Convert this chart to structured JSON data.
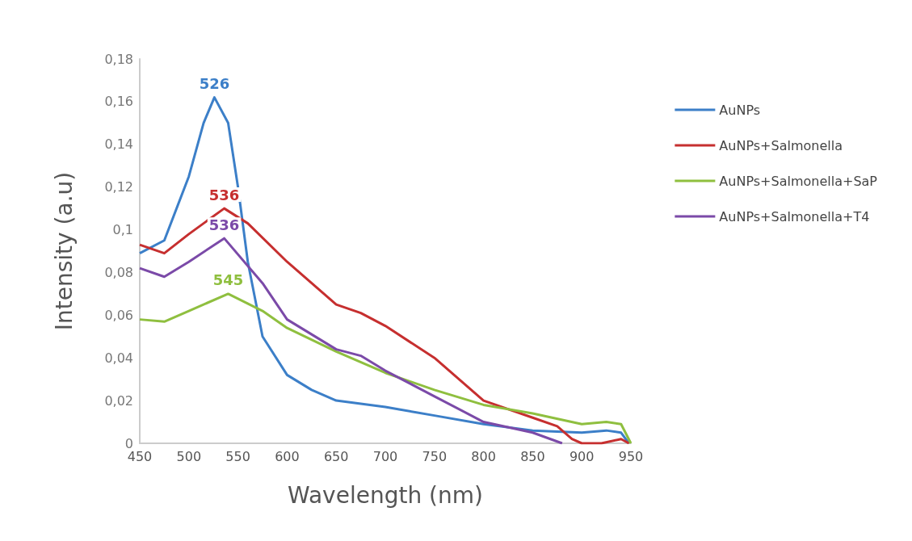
{
  "chart_data": {
    "type": "line",
    "xlabel": "Wavelength (nm)",
    "ylabel": "Intensity (a.u)",
    "xlim": [
      450,
      950
    ],
    "xticks": [
      450,
      500,
      550,
      600,
      650,
      700,
      750,
      800,
      850,
      900,
      950
    ],
    "ylim": [
      0,
      0.18
    ],
    "yticks": [
      0,
      {
        "value": 0.02,
        "label": "0,02"
      },
      {
        "value": 0.04,
        "label": "0,04"
      },
      {
        "value": 0.06,
        "label": "0,06"
      },
      {
        "value": 0.08,
        "label": "0,08"
      },
      {
        "value": 0.1,
        "label": "0,1"
      },
      {
        "value": 0.12,
        "label": "0,12"
      },
      {
        "value": 0.14,
        "label": "0,14"
      },
      {
        "value": 0.16,
        "label": "0,16"
      },
      {
        "value": 0.18,
        "label": "0,18"
      }
    ],
    "grid": false,
    "legend": "right",
    "marker": "none",
    "line_style": "solid",
    "series": [
      {
        "name": "AuNPs",
        "color": "#3c7fc8",
        "x": [
          450,
          475,
          500,
          515,
          526,
          540,
          550,
          560,
          575,
          600,
          625,
          650,
          700,
          750,
          800,
          850,
          900,
          925,
          940,
          948
        ],
        "values": [
          0.089,
          0.095,
          0.125,
          0.15,
          0.162,
          0.15,
          0.12,
          0.085,
          0.05,
          0.032,
          0.025,
          0.02,
          0.017,
          0.013,
          0.009,
          0.006,
          0.005,
          0.006,
          0.005,
          0
        ]
      },
      {
        "name": "AuNPs+Salmonella",
        "color": "#c62f2f",
        "x": [
          450,
          475,
          500,
          536,
          560,
          600,
          650,
          675,
          700,
          750,
          800,
          850,
          875,
          890,
          900,
          920,
          940,
          948
        ],
        "values": [
          0.093,
          0.089,
          0.098,
          0.11,
          0.103,
          0.085,
          0.065,
          0.061,
          0.055,
          0.04,
          0.02,
          0.012,
          0.008,
          0.002,
          0,
          0,
          0.002,
          0
        ]
      },
      {
        "name": "AuNPs+Salmonella+SaP",
        "color": "#8fbf3f",
        "x": [
          450,
          475,
          500,
          540,
          575,
          600,
          650,
          700,
          750,
          800,
          850,
          900,
          925,
          940,
          950
        ],
        "values": [
          0.058,
          0.057,
          0.062,
          0.07,
          0.062,
          0.054,
          0.043,
          0.033,
          0.025,
          0.018,
          0.014,
          0.009,
          0.01,
          0.009,
          0
        ]
      },
      {
        "name": "AuNPs+Salmonella+T4",
        "color": "#7b4aa8",
        "x": [
          450,
          475,
          500,
          536,
          575,
          600,
          650,
          675,
          700,
          750,
          800,
          850,
          880
        ],
        "values": [
          0.082,
          0.078,
          0.085,
          0.096,
          0.075,
          0.058,
          0.044,
          0.041,
          0.034,
          0.022,
          0.01,
          0.005,
          0
        ]
      }
    ],
    "annotations": [
      {
        "text": "526",
        "x": 526,
        "y": 0.162
      },
      {
        "text": "536",
        "x": 536,
        "y": 0.11
      },
      {
        "text": "545",
        "x": 540,
        "y": 0.07
      },
      {
        "text": "536",
        "x": 536,
        "y": 0.096
      }
    ]
  }
}
